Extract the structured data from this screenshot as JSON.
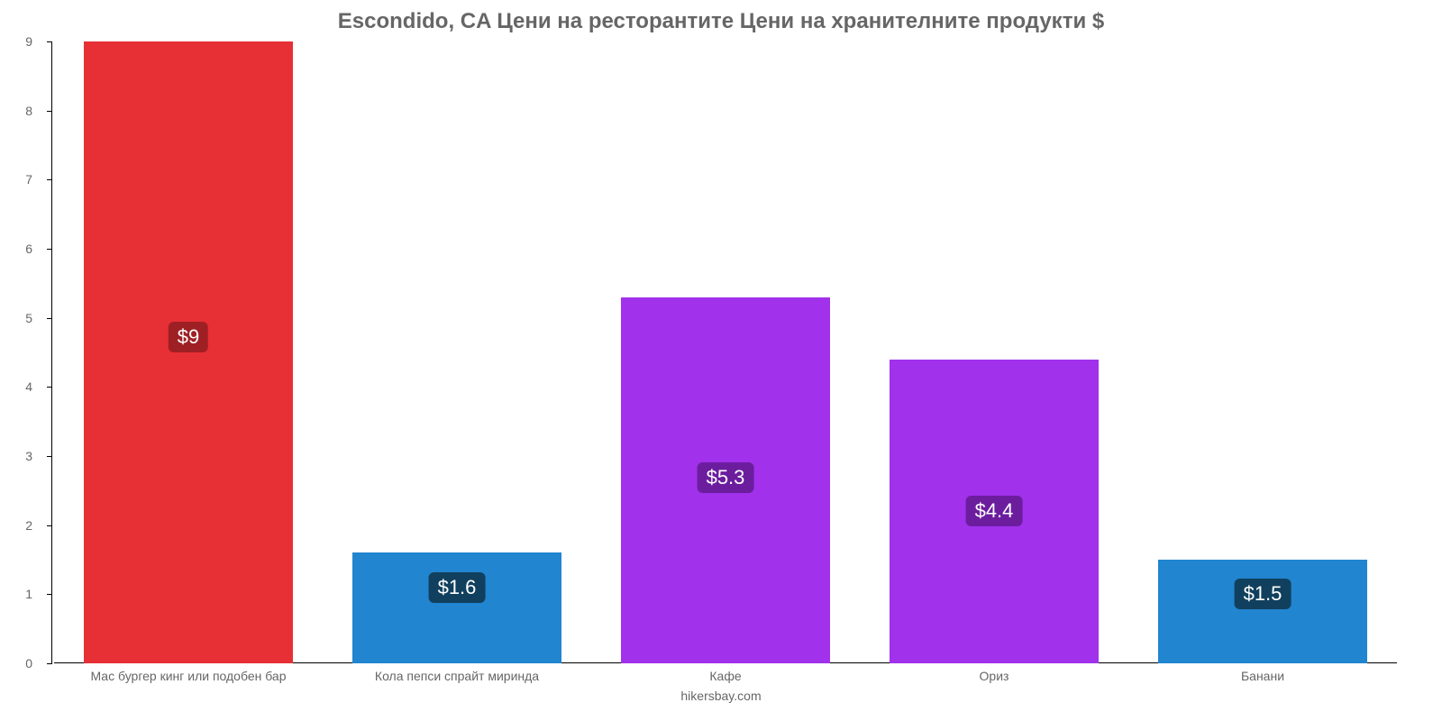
{
  "chart": {
    "type": "bar",
    "title": "Escondido, CA Цени на ресторантите Цени на хранителните продукти $",
    "title_color": "#666666",
    "title_fontsize": 24,
    "footer": "hikersbay.com",
    "footer_color": "#666666",
    "background_color": "#ffffff",
    "axis_color": "#000000",
    "tick_color": "#666666",
    "tick_fontsize": 14,
    "bar_width_pct": 78,
    "value_label_fontsize": 22,
    "value_label_text_color": "#ffffff",
    "value_label_radius": 6,
    "ylim": [
      0,
      9
    ],
    "yticks": [
      0,
      1,
      2,
      3,
      4,
      5,
      6,
      7,
      8,
      9
    ],
    "categories": [
      "Мас бургер кинг или подобен бар",
      "Кола пепси спрайт миринда",
      "Кафе",
      "Ориз",
      "Банани"
    ],
    "values": [
      9,
      1.6,
      5.3,
      4.4,
      1.5
    ],
    "display_values": [
      "$9",
      "$1.6",
      "$5.3",
      "$4.4",
      "$1.5"
    ],
    "bar_colors": [
      "#e72f36",
      "#2185d0",
      "#a131eb",
      "#a131eb",
      "#2185d0"
    ],
    "label_bg_colors": [
      "#9e2024",
      "#11405e",
      "#6b1d9e",
      "#6b1d9e",
      "#11405e"
    ]
  }
}
